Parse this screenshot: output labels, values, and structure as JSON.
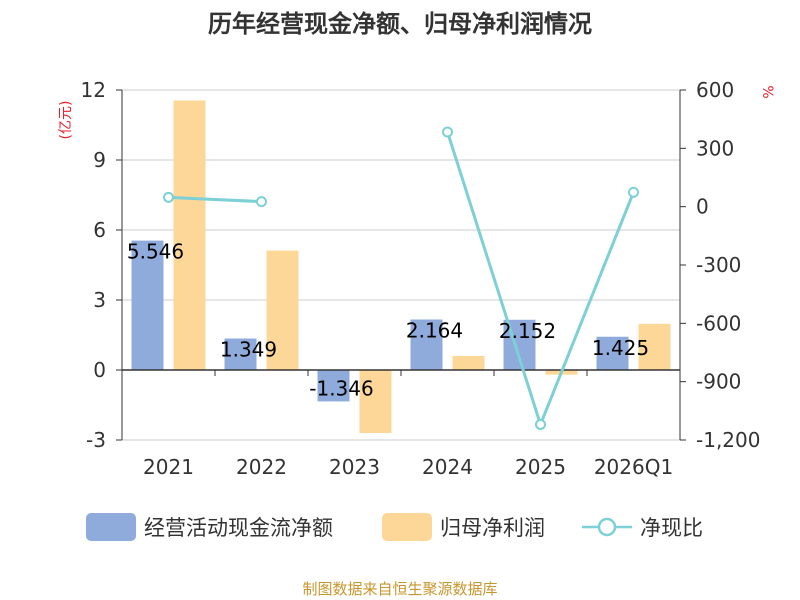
{
  "chart_data": {
    "type": "bar+line",
    "title": "历年经营现金净额、归母净利润情况",
    "categories": [
      "2021",
      "2022",
      "2023",
      "2024",
      "2025",
      "2026Q1"
    ],
    "series": [
      {
        "name": "经营活动现金流净额",
        "type": "bar",
        "axis": "left",
        "color": "#8fabdb",
        "values": [
          5.546,
          1.349,
          -1.346,
          2.164,
          2.152,
          1.425
        ]
      },
      {
        "name": "归母净利润",
        "type": "bar",
        "axis": "left",
        "color": "#fdd797",
        "values": [
          11.55,
          5.12,
          -2.7,
          0.6,
          -0.2,
          1.98
        ]
      },
      {
        "name": "净现比",
        "type": "line",
        "axis": "right",
        "color": "#7dd0d6",
        "values": [
          48,
          26,
          null,
          384,
          -1120,
          74
        ]
      }
    ],
    "data_labels": [
      "5.546",
      "1.349",
      "-1.346",
      "2.164",
      "2.152",
      "1.425"
    ],
    "left_axis": {
      "unit": "(亿元)",
      "ylim": [
        -3,
        12
      ],
      "ticks": [
        -3,
        0,
        3,
        6,
        9,
        12
      ]
    },
    "right_axis": {
      "unit": "%",
      "ylim": [
        -1200,
        600
      ],
      "ticks": [
        -1200,
        -900,
        -600,
        -300,
        0,
        300,
        600
      ],
      "tick_labels": [
        "-1,200",
        "-900",
        "-600",
        "-300",
        "0",
        "300",
        "600"
      ]
    },
    "legend_position": "bottom",
    "grid": true
  },
  "legend": {
    "items": [
      {
        "label": "经营活动现金流净额",
        "color": "#8fabdb"
      },
      {
        "label": "归母净利润",
        "color": "#fdd797"
      },
      {
        "label": "净现比",
        "color": "#7dd0d6"
      }
    ]
  },
  "source": {
    "text": "制图数据来自恒生聚源数据库",
    "color": "#c8962e"
  }
}
